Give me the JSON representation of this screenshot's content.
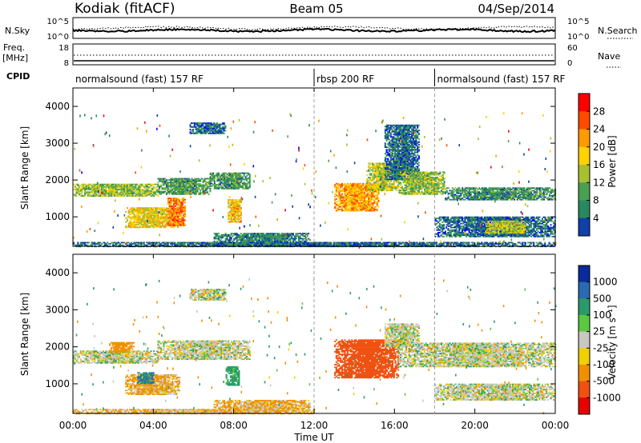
{
  "header": {
    "station": "Kodiak (fitACF)",
    "beam": "Beam 05",
    "date": "04/Sep/2014"
  },
  "noise_panel": {
    "left_label": "N.Sky",
    "left_ticks": [
      "10^5",
      "10^0"
    ],
    "right_label": "N.Search",
    "right_ticks": [
      "10^5",
      "10^0"
    ]
  },
  "freq_panel": {
    "left_label_1": "Freq.",
    "left_label_2": "[MHz]",
    "left_ticks": [
      "18",
      "8"
    ],
    "right_label": "Nave",
    "right_ticks": [
      "60",
      "0"
    ]
  },
  "cpid": {
    "label": "CPID",
    "segments": [
      {
        "start": 0,
        "end": 12,
        "text": "normalsound (fast) 157 RF"
      },
      {
        "start": 12,
        "end": 18,
        "text": "rbsp 200 RF"
      },
      {
        "start": 18,
        "end": 24,
        "text": "normalsound (fast) 157 RF"
      }
    ]
  },
  "x_axis": {
    "label": "Time UT",
    "ticks": [
      "00:00",
      "04:00",
      "08:00",
      "12:00",
      "16:00",
      "20:00",
      "00:00"
    ]
  },
  "power_colorbar": {
    "label": "Power [dB]",
    "ticks": [
      "28",
      "24",
      "20",
      "16",
      "12",
      "8",
      "4"
    ],
    "colors": [
      "#ff0000",
      "#ff4a00",
      "#ff9a00",
      "#ffd200",
      "#a8c030",
      "#4aa050",
      "#288860",
      "#1040a8",
      "#0000ff"
    ]
  },
  "velocity_colorbar": {
    "label": "Velocity [m s⁻¹]",
    "ticks": [
      "1000",
      "500",
      "100",
      "25",
      "-25",
      "-100",
      "-500",
      "-1000"
    ],
    "colors": [
      "#0a2a9c",
      "#2a6ab0",
      "#2a9a6a",
      "#5ac840",
      "#c8c8c0",
      "#f0d000",
      "#f09000",
      "#f05010",
      "#e80000"
    ]
  },
  "chart_data": [
    {
      "type": "heatmap",
      "title": "Power",
      "xlabel": "",
      "ylabel": "Slant Range [km]",
      "xlim": [
        0,
        24
      ],
      "ylim": [
        200,
        4500
      ],
      "yticks": [
        1000,
        2000,
        3000,
        4000
      ],
      "colorbar": {
        "label": "Power [dB]",
        "range": [
          0,
          30
        ]
      },
      "regions": [
        {
          "t0": 0.0,
          "t1": 4.2,
          "r0": 1550,
          "r1": 1900,
          "val": 14
        },
        {
          "t0": 4.2,
          "t1": 6.8,
          "r0": 1600,
          "r1": 2050,
          "val": 10
        },
        {
          "t0": 6.8,
          "t1": 8.8,
          "r0": 1750,
          "r1": 2200,
          "val": 9
        },
        {
          "t0": 2.6,
          "t1": 5.2,
          "r0": 700,
          "r1": 1250,
          "val": 18
        },
        {
          "t0": 4.7,
          "t1": 5.6,
          "r0": 750,
          "r1": 1500,
          "val": 24
        },
        {
          "t0": 7.7,
          "t1": 8.4,
          "r0": 850,
          "r1": 1450,
          "val": 20
        },
        {
          "t0": 5.8,
          "t1": 7.6,
          "r0": 3250,
          "r1": 3550,
          "val": 6
        },
        {
          "t0": 7.0,
          "t1": 11.8,
          "r0": 250,
          "r1": 550,
          "val": 8
        },
        {
          "t0": 13.0,
          "t1": 15.2,
          "r0": 1150,
          "r1": 1900,
          "val": 22
        },
        {
          "t0": 14.6,
          "t1": 16.2,
          "r0": 1700,
          "r1": 2450,
          "val": 16
        },
        {
          "t0": 15.5,
          "t1": 17.2,
          "r0": 2000,
          "r1": 3500,
          "val": 6
        },
        {
          "t0": 16.2,
          "t1": 18.5,
          "r0": 1600,
          "r1": 2200,
          "val": 14
        },
        {
          "t0": 18.5,
          "t1": 24.0,
          "r0": 1450,
          "r1": 1800,
          "val": 9
        },
        {
          "t0": 18.0,
          "t1": 24.0,
          "r0": 450,
          "r1": 1000,
          "val": 6
        },
        {
          "t0": 20.5,
          "t1": 22.5,
          "r0": 550,
          "r1": 900,
          "val": 16
        },
        {
          "t0": 0.0,
          "t1": 24.0,
          "r0": 180,
          "r1": 300,
          "val": 6
        }
      ]
    },
    {
      "type": "heatmap",
      "title": "Velocity",
      "xlabel": "Time UT",
      "ylabel": "Slant Range [km]",
      "xlim": [
        0,
        24
      ],
      "ylim": [
        200,
        4500
      ],
      "yticks": [
        1000,
        2000,
        3000,
        4000
      ],
      "colorbar": {
        "label": "Velocity [m s⁻¹]",
        "range": [
          -1000,
          1000
        ]
      },
      "regions": [
        {
          "t0": 0.0,
          "t1": 4.2,
          "r0": 1550,
          "r1": 1900,
          "val": 0
        },
        {
          "t0": 4.2,
          "t1": 8.8,
          "r0": 1650,
          "r1": 2150,
          "val": 0
        },
        {
          "t0": 1.8,
          "t1": 3.0,
          "r0": 1850,
          "r1": 2100,
          "val": -150
        },
        {
          "t0": 2.6,
          "t1": 5.3,
          "r0": 700,
          "r1": 1250,
          "val": -80
        },
        {
          "t0": 3.2,
          "t1": 4.0,
          "r0": 1000,
          "r1": 1300,
          "val": 300
        },
        {
          "t0": 7.6,
          "t1": 8.3,
          "r0": 950,
          "r1": 1450,
          "val": 120
        },
        {
          "t0": 5.8,
          "t1": 7.6,
          "r0": 3250,
          "r1": 3550,
          "val": 0
        },
        {
          "t0": 7.0,
          "t1": 11.8,
          "r0": 250,
          "r1": 550,
          "val": -70
        },
        {
          "t0": 13.0,
          "t1": 16.2,
          "r0": 1150,
          "r1": 2200,
          "val": -400
        },
        {
          "t0": 15.5,
          "t1": 17.2,
          "r0": 2000,
          "r1": 2600,
          "val": 0
        },
        {
          "t0": 16.2,
          "t1": 24.0,
          "r0": 1450,
          "r1": 2100,
          "val": 0
        },
        {
          "t0": 18.0,
          "t1": 24.0,
          "r0": 550,
          "r1": 1000,
          "val": 0
        },
        {
          "t0": 0.0,
          "t1": 12.0,
          "r0": 180,
          "r1": 300,
          "val": -60
        }
      ]
    }
  ]
}
